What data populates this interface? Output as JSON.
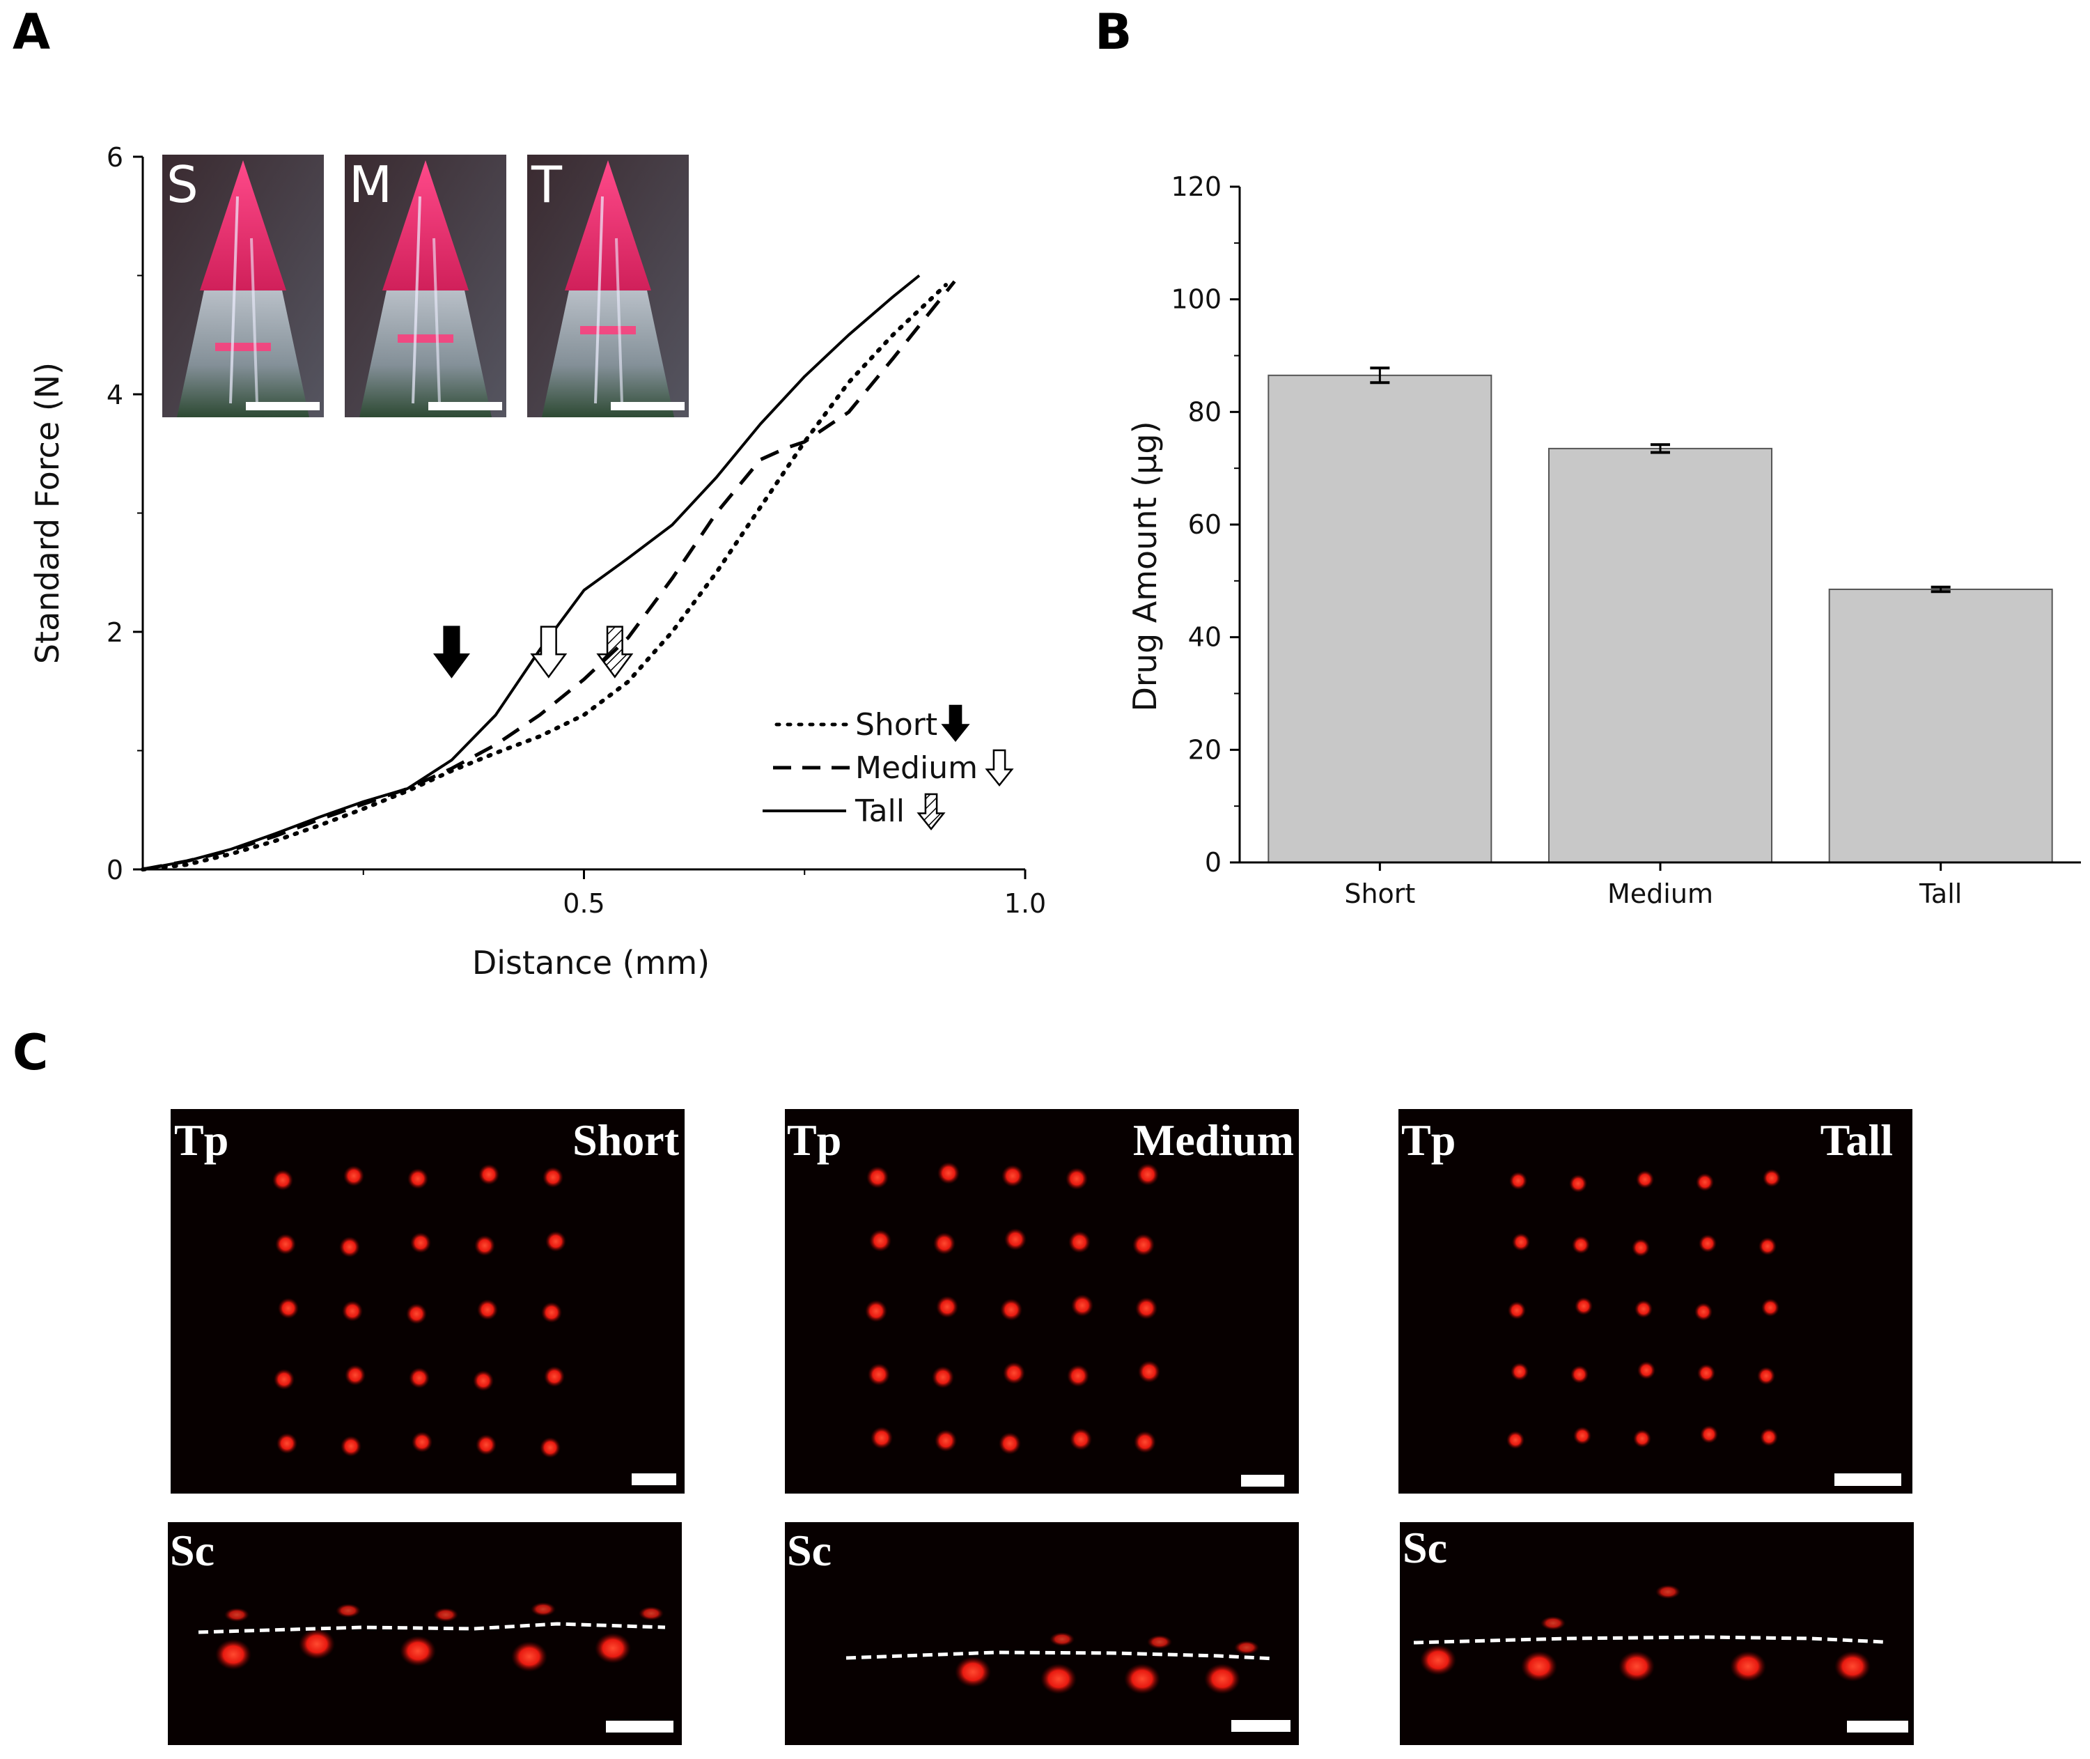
{
  "panels": {
    "a": "A",
    "b": "B",
    "c": "C"
  },
  "chart_data": [
    {
      "panel": "A",
      "type": "line",
      "xlabel": "Distance (mm)",
      "ylabel": "Standard Force (N)",
      "xlim": [
        0,
        1.0
      ],
      "ylim": [
        0,
        6
      ],
      "x_ticks": [
        0.5,
        1.0
      ],
      "x_tick_labels": [
        "0.5",
        "1.0"
      ],
      "y_ticks": [
        0,
        2,
        4,
        6
      ],
      "y_tick_labels": [
        "0",
        "2",
        "4",
        "6"
      ],
      "legend_position": "bottom-right",
      "series": [
        {
          "name": "Short",
          "style": "dotted",
          "x": [
            0,
            0.05,
            0.1,
            0.15,
            0.2,
            0.25,
            0.3,
            0.35,
            0.4,
            0.45,
            0.5,
            0.55,
            0.6,
            0.65,
            0.7,
            0.75,
            0.8,
            0.85,
            0.91
          ],
          "y": [
            0,
            0.04,
            0.13,
            0.24,
            0.37,
            0.51,
            0.66,
            0.83,
            0.98,
            1.12,
            1.3,
            1.58,
            2.0,
            2.5,
            3.05,
            3.6,
            4.1,
            4.5,
            4.92
          ]
        },
        {
          "name": "Medium",
          "style": "dashed",
          "x": [
            0,
            0.05,
            0.1,
            0.15,
            0.2,
            0.25,
            0.3,
            0.35,
            0.4,
            0.45,
            0.5,
            0.55,
            0.6,
            0.65,
            0.7,
            0.73,
            0.75,
            0.8,
            0.85,
            0.92
          ],
          "y": [
            0,
            0.07,
            0.16,
            0.28,
            0.42,
            0.55,
            0.68,
            0.85,
            1.05,
            1.3,
            1.6,
            1.95,
            2.45,
            3.0,
            3.45,
            3.55,
            3.6,
            3.85,
            4.3,
            4.95
          ]
        },
        {
          "name": "Tall",
          "style": "solid",
          "x": [
            0,
            0.05,
            0.1,
            0.15,
            0.2,
            0.25,
            0.3,
            0.35,
            0.4,
            0.45,
            0.5,
            0.55,
            0.6,
            0.65,
            0.7,
            0.75,
            0.8,
            0.85,
            0.88
          ],
          "y": [
            0,
            0.07,
            0.17,
            0.3,
            0.44,
            0.57,
            0.68,
            0.92,
            1.3,
            1.85,
            2.35,
            2.62,
            2.9,
            3.3,
            3.75,
            4.15,
            4.5,
            4.82,
            5.0
          ]
        }
      ],
      "annotations": [
        {
          "series": "Short",
          "marker": "arrow-solid",
          "x": 0.35,
          "y": 1.75
        },
        {
          "series": "Medium",
          "marker": "arrow-open",
          "x": 0.46,
          "y": 1.75
        },
        {
          "series": "Tall",
          "marker": "arrow-hatched",
          "x": 0.535,
          "y": 1.75
        }
      ],
      "insets": [
        "S",
        "M",
        "T"
      ]
    },
    {
      "panel": "B",
      "type": "bar",
      "ylabel": "Drug Amount (µg)",
      "xlabel": "",
      "categories": [
        "Short",
        "Medium",
        "Tall"
      ],
      "values": [
        86.5,
        73.5,
        48.5
      ],
      "errors": [
        1.3,
        0.7,
        0.4
      ],
      "ylim": [
        0,
        120
      ],
      "y_ticks": [
        0,
        20,
        40,
        60,
        80,
        100,
        120
      ],
      "y_tick_labels": [
        "0",
        "20",
        "40",
        "60",
        "80",
        "100",
        "120"
      ],
      "bar_color": "#c8c8c8"
    }
  ],
  "panel_c": {
    "top_label": "Tp",
    "side_label": "Sc",
    "images": [
      {
        "title": "Short"
      },
      {
        "title": "Medium"
      },
      {
        "title": "Tall"
      }
    ]
  },
  "colors": {
    "fluorescence": "#ff2a1a",
    "inset_tip": "#e0306a",
    "bar": "#c8c8c8"
  }
}
